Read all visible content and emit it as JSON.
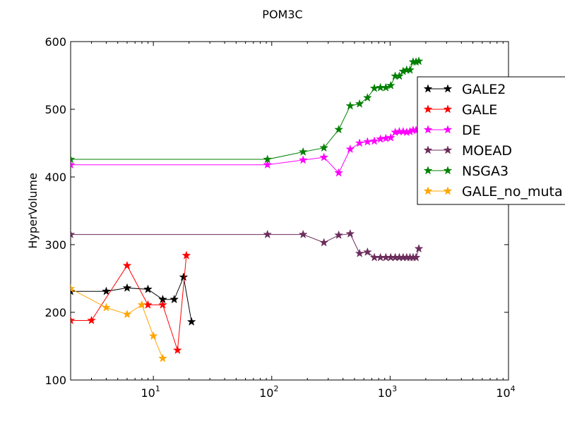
{
  "chart_data": {
    "type": "line",
    "title": "POM3C",
    "xlabel": "",
    "ylabel": "HyperVolume",
    "xscale": "log",
    "xlim": [
      2,
      10000
    ],
    "ylim": [
      100,
      600
    ],
    "yticks": [
      100,
      200,
      300,
      400,
      500,
      600
    ],
    "xticks": [
      {
        "base": "10",
        "exp": "1",
        "value": 10
      },
      {
        "base": "10",
        "exp": "2",
        "value": 100
      },
      {
        "base": "10",
        "exp": "3",
        "value": 1000
      },
      {
        "base": "10",
        "exp": "4",
        "value": 10000
      }
    ],
    "grid": false,
    "legend_position": "right",
    "marker": "star",
    "series": [
      {
        "name": "GALE2",
        "color": "#000000",
        "x": [
          2,
          4,
          6,
          9,
          12,
          15,
          18,
          21
        ],
        "y": [
          231,
          231,
          236,
          234,
          219,
          219,
          252,
          186
        ]
      },
      {
        "name": "GALE",
        "color": "#ff0000",
        "x": [
          2,
          3,
          6,
          9,
          12,
          16,
          19
        ],
        "y": [
          188,
          188,
          269,
          211,
          211,
          144,
          284
        ]
      },
      {
        "name": "DE",
        "color": "#ff00ff",
        "x": [
          2,
          92,
          184,
          276,
          368,
          460,
          552,
          644,
          736,
          828,
          920,
          1012,
          1104,
          1196,
          1288,
          1380,
          1472,
          1564,
          1656,
          1748
        ],
        "y": [
          418,
          418,
          425,
          429,
          406,
          441,
          450,
          452,
          453,
          456,
          457,
          458,
          466,
          467,
          467,
          466,
          467,
          469,
          469,
          470
        ]
      },
      {
        "name": "MOEAD",
        "color": "#6b2d5c",
        "x": [
          2,
          92,
          184,
          276,
          368,
          460,
          552,
          644,
          736,
          828,
          920,
          1012,
          1104,
          1196,
          1288,
          1380,
          1472,
          1564,
          1656,
          1748
        ],
        "y": [
          315,
          315,
          315,
          303,
          314,
          316,
          287,
          289,
          281,
          281,
          281,
          281,
          281,
          281,
          281,
          281,
          281,
          281,
          281,
          294
        ]
      },
      {
        "name": "NSGA3",
        "color": "#008000",
        "x": [
          2,
          92,
          184,
          276,
          368,
          460,
          552,
          644,
          736,
          828,
          920,
          1012,
          1104,
          1196,
          1288,
          1380,
          1472,
          1564,
          1656,
          1748
        ],
        "y": [
          426,
          426,
          437,
          443,
          470,
          505,
          508,
          517,
          531,
          532,
          532,
          535,
          549,
          549,
          556,
          558,
          558,
          570,
          570,
          571
        ]
      },
      {
        "name": "GALE_no_muta",
        "color": "#ffa500",
        "x": [
          2,
          4,
          6,
          8,
          10,
          12
        ],
        "y": [
          235,
          207,
          197,
          211,
          165,
          132
        ]
      }
    ]
  }
}
